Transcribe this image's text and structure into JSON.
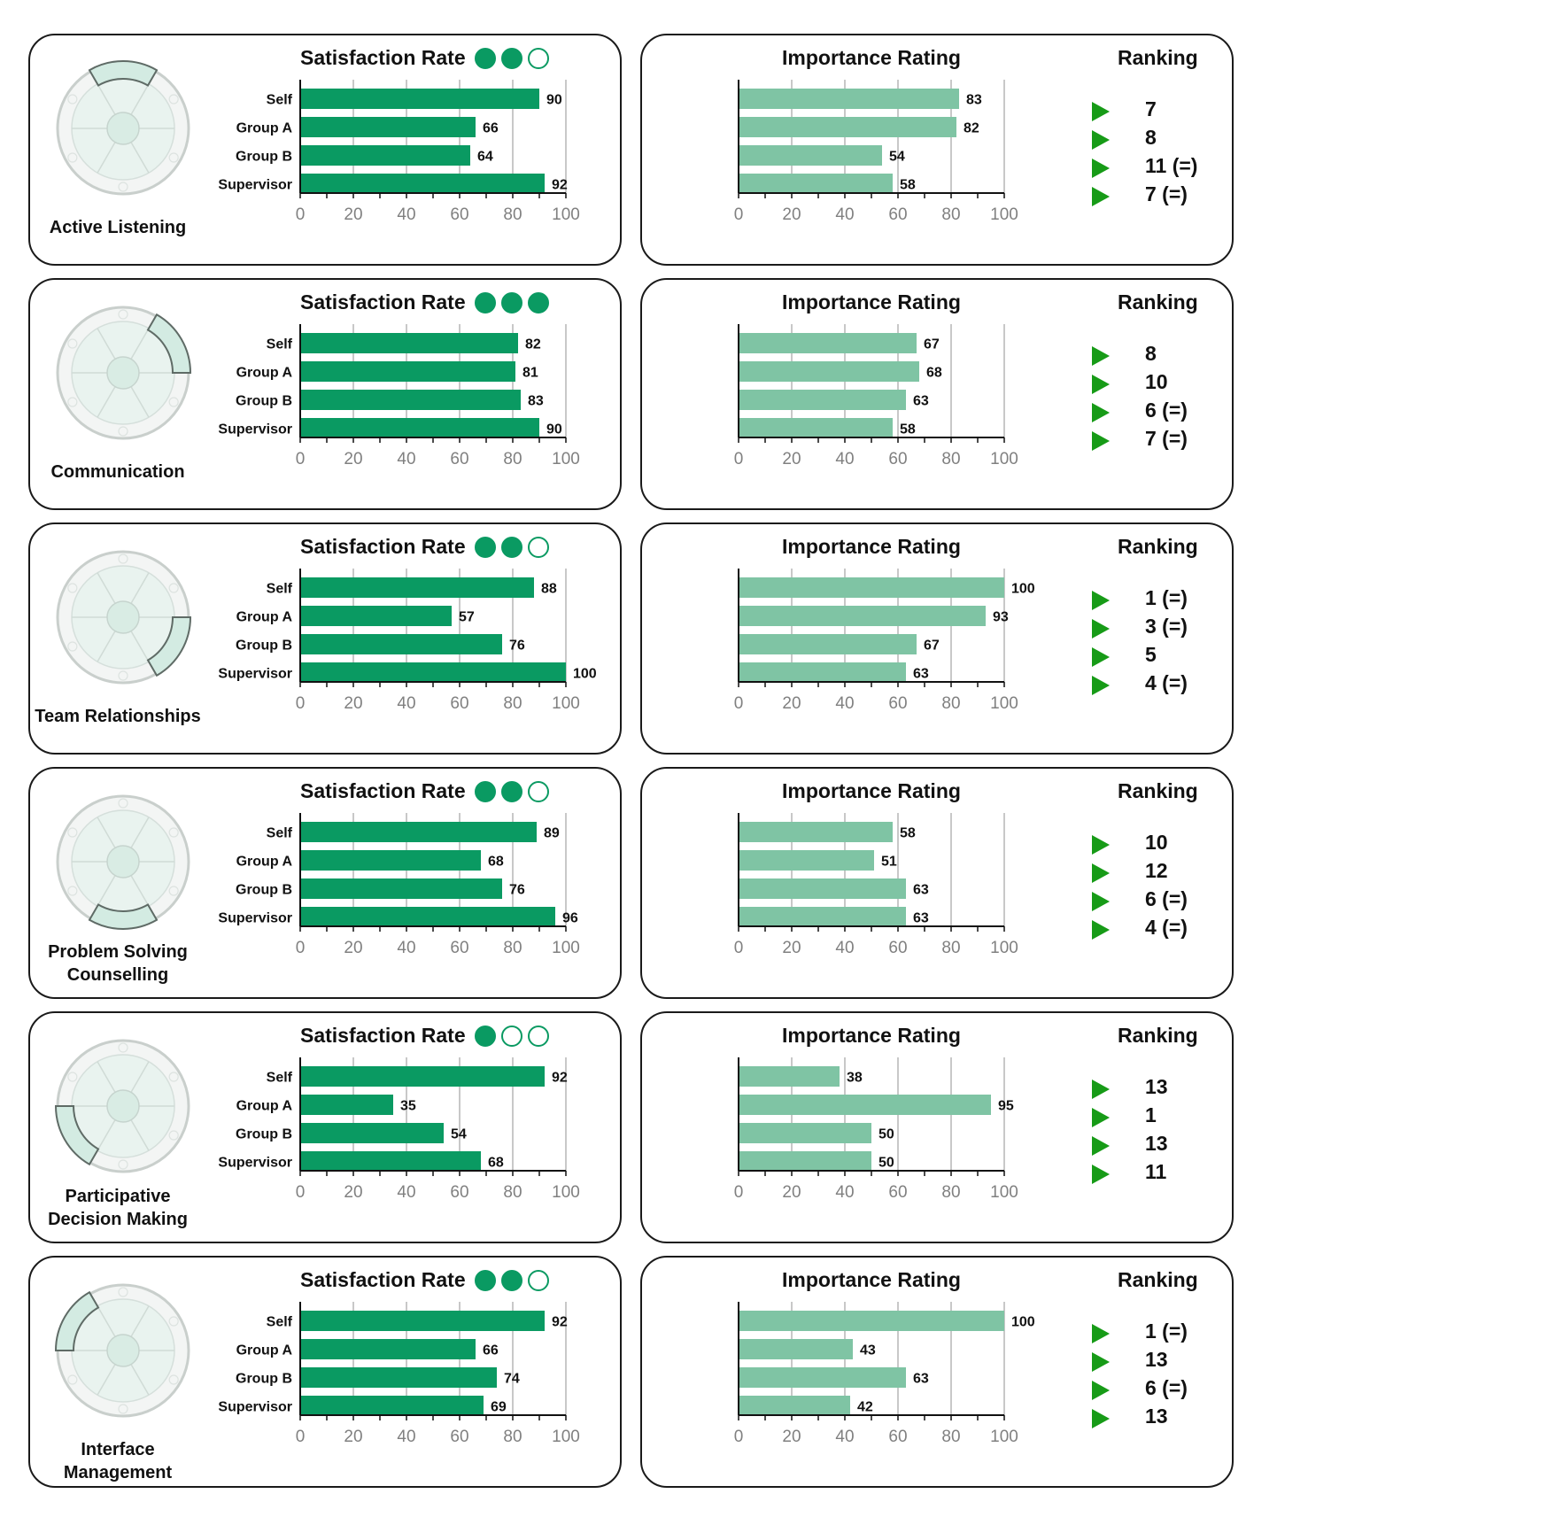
{
  "labels": {
    "satisfaction_title": "Satisfaction Rate",
    "importance_title": "Importance Rating",
    "ranking_title": "Ranking"
  },
  "colors": {
    "satisfaction_bar": "#0a9a62",
    "importance_bar": "#7fc4a4",
    "rank_arrow": "#179b17",
    "dot": "#0a9a62",
    "card_border": "#1a1a1a",
    "grid": "#c8c8c8"
  },
  "icons": {
    "rank_marker": "right-triangle-icon",
    "competency_graphic": "puzzle-wheel-icon",
    "rating_dot": "circle-icon"
  },
  "chart_data": [
    {
      "competency": "Active Listening",
      "satisfaction_dots": 2,
      "satisfaction": {
        "type": "bar",
        "orientation": "horizontal",
        "title": "Satisfaction Rate",
        "categories": [
          "Self",
          "Group A",
          "Group B",
          "Supervisor"
        ],
        "values": [
          90,
          66,
          64,
          92
        ],
        "xlim": [
          0,
          100
        ],
        "ticks": [
          "0",
          "20",
          "40",
          "60",
          "80",
          "100"
        ],
        "grid": true
      },
      "importance": {
        "type": "bar",
        "orientation": "horizontal",
        "title": "Importance Rating",
        "values": [
          83,
          82,
          54,
          58
        ],
        "xlim": [
          0,
          100
        ],
        "ticks": [
          "0",
          "20",
          "40",
          "60",
          "80",
          "100"
        ],
        "grid": true
      },
      "ranking": [
        "7",
        "8",
        "11 (=)",
        "7 (=)"
      ]
    },
    {
      "competency": "Communication",
      "satisfaction_dots": 3,
      "satisfaction": {
        "type": "bar",
        "orientation": "horizontal",
        "title": "Satisfaction Rate",
        "categories": [
          "Self",
          "Group A",
          "Group B",
          "Supervisor"
        ],
        "values": [
          82,
          81,
          83,
          90
        ],
        "xlim": [
          0,
          100
        ],
        "ticks": [
          "0",
          "20",
          "40",
          "60",
          "80",
          "100"
        ],
        "grid": true
      },
      "importance": {
        "type": "bar",
        "orientation": "horizontal",
        "title": "Importance Rating",
        "values": [
          67,
          68,
          63,
          58
        ],
        "xlim": [
          0,
          100
        ],
        "ticks": [
          "0",
          "20",
          "40",
          "60",
          "80",
          "100"
        ],
        "grid": true
      },
      "ranking": [
        "8",
        "10",
        "6 (=)",
        "7 (=)"
      ]
    },
    {
      "competency": "Team Relationships",
      "satisfaction_dots": 2,
      "satisfaction": {
        "type": "bar",
        "orientation": "horizontal",
        "title": "Satisfaction Rate",
        "categories": [
          "Self",
          "Group A",
          "Group B",
          "Supervisor"
        ],
        "values": [
          88,
          57,
          76,
          100
        ],
        "xlim": [
          0,
          100
        ],
        "ticks": [
          "0",
          "20",
          "40",
          "60",
          "80",
          "100"
        ],
        "grid": true
      },
      "importance": {
        "type": "bar",
        "orientation": "horizontal",
        "title": "Importance Rating",
        "values": [
          100,
          93,
          67,
          63
        ],
        "xlim": [
          0,
          100
        ],
        "ticks": [
          "0",
          "20",
          "40",
          "60",
          "80",
          "100"
        ],
        "grid": true
      },
      "ranking": [
        "1 (=)",
        "3 (=)",
        "5",
        "4 (=)"
      ]
    },
    {
      "competency": "Problem Solving Counselling",
      "satisfaction_dots": 2,
      "satisfaction": {
        "type": "bar",
        "orientation": "horizontal",
        "title": "Satisfaction Rate",
        "categories": [
          "Self",
          "Group A",
          "Group B",
          "Supervisor"
        ],
        "values": [
          89,
          68,
          76,
          96
        ],
        "xlim": [
          0,
          100
        ],
        "ticks": [
          "0",
          "20",
          "40",
          "60",
          "80",
          "100"
        ],
        "grid": true
      },
      "importance": {
        "type": "bar",
        "orientation": "horizontal",
        "title": "Importance Rating",
        "values": [
          58,
          51,
          63,
          63
        ],
        "xlim": [
          0,
          100
        ],
        "ticks": [
          "0",
          "20",
          "40",
          "60",
          "80",
          "100"
        ],
        "grid": true
      },
      "ranking": [
        "10",
        "12",
        "6 (=)",
        "4 (=)"
      ]
    },
    {
      "competency": "Participative Decision Making",
      "satisfaction_dots": 1,
      "satisfaction": {
        "type": "bar",
        "orientation": "horizontal",
        "title": "Satisfaction Rate",
        "categories": [
          "Self",
          "Group A",
          "Group B",
          "Supervisor"
        ],
        "values": [
          92,
          35,
          54,
          68
        ],
        "xlim": [
          0,
          100
        ],
        "ticks": [
          "0",
          "20",
          "40",
          "60",
          "80",
          "100"
        ],
        "grid": true
      },
      "importance": {
        "type": "bar",
        "orientation": "horizontal",
        "title": "Importance Rating",
        "values": [
          38,
          95,
          50,
          50
        ],
        "xlim": [
          0,
          100
        ],
        "ticks": [
          "0",
          "20",
          "40",
          "60",
          "80",
          "100"
        ],
        "grid": true
      },
      "ranking": [
        "13",
        "1",
        "13",
        "11"
      ]
    },
    {
      "competency": "Interface Management",
      "satisfaction_dots": 2,
      "satisfaction": {
        "type": "bar",
        "orientation": "horizontal",
        "title": "Satisfaction Rate",
        "categories": [
          "Self",
          "Group A",
          "Group B",
          "Supervisor"
        ],
        "values": [
          92,
          66,
          74,
          69
        ],
        "xlim": [
          0,
          100
        ],
        "ticks": [
          "0",
          "20",
          "40",
          "60",
          "80",
          "100"
        ],
        "grid": true
      },
      "importance": {
        "type": "bar",
        "orientation": "horizontal",
        "title": "Importance Rating",
        "values": [
          100,
          43,
          63,
          42
        ],
        "xlim": [
          0,
          100
        ],
        "ticks": [
          "0",
          "20",
          "40",
          "60",
          "80",
          "100"
        ],
        "grid": true
      },
      "ranking": [
        "1 (=)",
        "13",
        "6 (=)",
        "13"
      ]
    }
  ]
}
